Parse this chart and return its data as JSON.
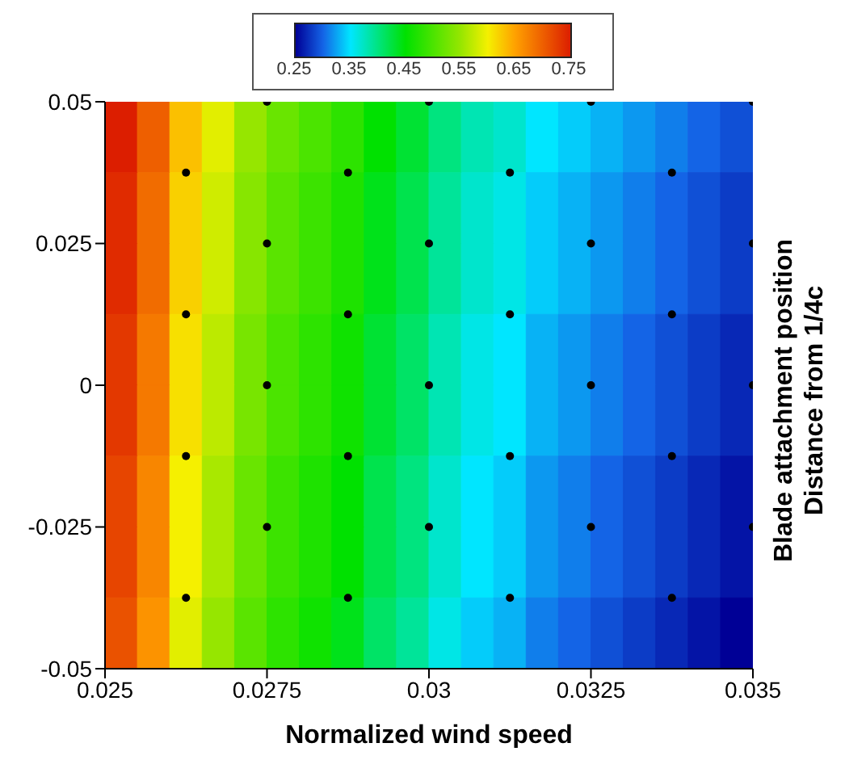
{
  "chart_data": {
    "type": "heatmap",
    "xlabel": "Normalized wind speed",
    "ylabel": "Blade attachment position\nDistance from 1/4c",
    "x": [
      0.02525,
      0.02575,
      0.02625,
      0.02675,
      0.02725,
      0.02775,
      0.02825,
      0.02875,
      0.02925,
      0.02975,
      0.03025,
      0.03075,
      0.03125,
      0.03175,
      0.03225,
      0.03275,
      0.03325,
      0.03375,
      0.03425,
      0.03475
    ],
    "y": [
      0.04375,
      0.03125,
      0.01875,
      0.00625,
      -0.00625,
      -0.01875,
      -0.03125,
      -0.04375
    ],
    "cells": [
      [
        0.75,
        0.7,
        0.63,
        0.59,
        0.55,
        0.52,
        0.5,
        0.48,
        0.45,
        0.43,
        0.4,
        0.38,
        0.37,
        0.35,
        0.34,
        0.33,
        0.32,
        0.31,
        0.3,
        0.29
      ],
      [
        0.74,
        0.69,
        0.62,
        0.58,
        0.54,
        0.51,
        0.49,
        0.47,
        0.44,
        0.42,
        0.39,
        0.37,
        0.36,
        0.34,
        0.33,
        0.32,
        0.31,
        0.3,
        0.29,
        0.28
      ],
      [
        0.74,
        0.69,
        0.62,
        0.58,
        0.54,
        0.51,
        0.49,
        0.47,
        0.44,
        0.42,
        0.39,
        0.37,
        0.36,
        0.34,
        0.33,
        0.32,
        0.31,
        0.3,
        0.29,
        0.28
      ],
      [
        0.73,
        0.68,
        0.61,
        0.57,
        0.53,
        0.5,
        0.48,
        0.46,
        0.43,
        0.41,
        0.38,
        0.36,
        0.35,
        0.33,
        0.32,
        0.31,
        0.3,
        0.29,
        0.28,
        0.27
      ],
      [
        0.73,
        0.68,
        0.61,
        0.57,
        0.53,
        0.5,
        0.48,
        0.46,
        0.43,
        0.41,
        0.38,
        0.36,
        0.35,
        0.33,
        0.32,
        0.31,
        0.3,
        0.29,
        0.28,
        0.27
      ],
      [
        0.72,
        0.67,
        0.6,
        0.56,
        0.52,
        0.49,
        0.47,
        0.45,
        0.42,
        0.4,
        0.37,
        0.35,
        0.34,
        0.32,
        0.31,
        0.3,
        0.29,
        0.28,
        0.27,
        0.26
      ],
      [
        0.72,
        0.67,
        0.6,
        0.56,
        0.52,
        0.49,
        0.47,
        0.45,
        0.42,
        0.4,
        0.37,
        0.35,
        0.34,
        0.32,
        0.31,
        0.3,
        0.29,
        0.28,
        0.27,
        0.26
      ],
      [
        0.71,
        0.66,
        0.59,
        0.55,
        0.51,
        0.48,
        0.46,
        0.44,
        0.41,
        0.39,
        0.36,
        0.34,
        0.33,
        0.31,
        0.3,
        0.29,
        0.28,
        0.27,
        0.26,
        0.25
      ]
    ],
    "clim": [
      0.25,
      0.75
    ],
    "cticks": [
      0.25,
      0.35,
      0.45,
      0.55,
      0.65,
      0.75
    ],
    "xlim": [
      0.025,
      0.035
    ],
    "xticks": [
      0.025,
      0.0275,
      0.03,
      0.0325,
      0.035
    ],
    "ylim": [
      -0.05,
      0.05
    ],
    "yticks": [
      -0.05,
      -0.025,
      0,
      0.025,
      0.05
    ],
    "series": [
      {
        "type": "scatter",
        "color": "#000000",
        "marker": "circle",
        "x": [
          0.02625,
          0.02625,
          0.02625,
          0.02625,
          0.02875,
          0.02875,
          0.02875,
          0.02875,
          0.03125,
          0.03125,
          0.03125,
          0.03125,
          0.03375,
          0.03375,
          0.03375,
          0.03375,
          0.0275,
          0.0275,
          0.0275,
          0.0275,
          0.03,
          0.03,
          0.03,
          0.03,
          0.0325,
          0.0325,
          0.0325,
          0.0325,
          0.035,
          0.035,
          0.035,
          0.035
        ],
        "values": [
          0.0375,
          0.0125,
          -0.0125,
          -0.0375,
          0.0375,
          0.0125,
          -0.0125,
          -0.0375,
          0.0375,
          0.0125,
          -0.0125,
          -0.0375,
          0.0375,
          0.0125,
          -0.0125,
          -0.0375,
          0.05,
          0.025,
          0,
          -0.025,
          0.05,
          0.025,
          0,
          -0.025,
          0.05,
          0.025,
          0,
          -0.025,
          0.05,
          0.025,
          0,
          -0.025
        ]
      }
    ]
  }
}
